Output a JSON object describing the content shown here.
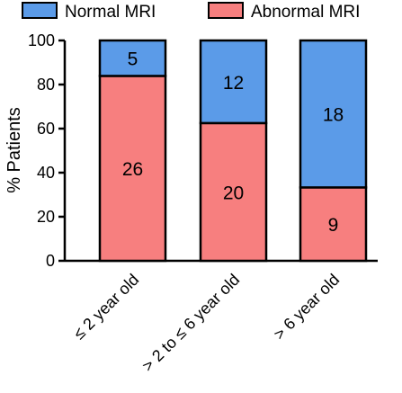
{
  "chart_data": {
    "type": "bar",
    "stacked": true,
    "percent_stacked": true,
    "categories": [
      "≤ 2 year old",
      "> 2 to ≤ 6 year old",
      "> 6 year old"
    ],
    "series": [
      {
        "name": "Abnormal MRI",
        "color": "#f77f7f",
        "counts": [
          26,
          20,
          9
        ],
        "values": [
          83.9,
          62.5,
          33.3
        ]
      },
      {
        "name": "Normal MRI",
        "color": "#5b9be8",
        "counts": [
          5,
          12,
          18
        ],
        "values": [
          16.1,
          37.5,
          66.7
        ]
      }
    ],
    "ylabel": "% Patients",
    "xlabel": "",
    "ylim": [
      0,
      100
    ],
    "yticks": [
      0,
      20,
      40,
      60,
      80,
      100
    ],
    "grid": false,
    "legend": "top"
  }
}
